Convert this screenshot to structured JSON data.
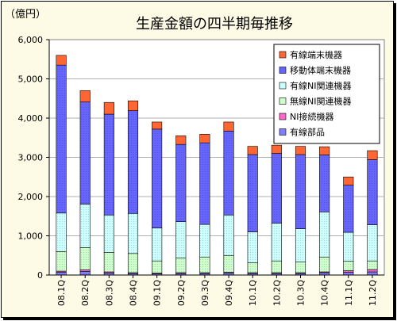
{
  "chart_data": {
    "type": "bar",
    "stacked": true,
    "title": "生産金額の四半期毎推移",
    "unit_label": "（億円）",
    "ylim": [
      0,
      6000
    ],
    "yticks": [
      0,
      1000,
      2000,
      3000,
      4000,
      5000,
      6000
    ],
    "ytick_labels": [
      "0",
      "1,000",
      "2,000",
      "3,000",
      "4,000",
      "5,000",
      "6,000"
    ],
    "categories": [
      "08.1Q",
      "08.2Q",
      "08.3Q",
      "08.4Q",
      "09.1Q",
      "09.2Q",
      "09.3Q",
      "09.4Q",
      "10.1Q",
      "10.2Q",
      "10.3Q",
      "10.4Q",
      "11.1Q",
      "11.2Q"
    ],
    "legend_position": "top-right",
    "grid": "horizontal",
    "series": [
      {
        "name": "有線部品",
        "color": "#8080ff",
        "pattern": "dots",
        "values": [
          70,
          90,
          50,
          40,
          30,
          40,
          40,
          50,
          40,
          40,
          40,
          60,
          70,
          80
        ]
      },
      {
        "name": "NI接続機器",
        "color": "#ff66cc",
        "pattern": "dots",
        "values": [
          30,
          40,
          30,
          20,
          20,
          20,
          20,
          20,
          20,
          20,
          20,
          20,
          40,
          60
        ]
      },
      {
        "name": "無線NI関連機器",
        "color": "#ccffcc",
        "pattern": "dots",
        "values": [
          500,
          570,
          500,
          490,
          310,
          370,
          400,
          430,
          250,
          300,
          270,
          380,
          240,
          220
        ]
      },
      {
        "name": "有線NI関連機器",
        "color": "#ccffff",
        "pattern": "dots",
        "values": [
          980,
          1110,
          950,
          1020,
          840,
          930,
          830,
          1030,
          790,
          960,
          850,
          1150,
          740,
          920
        ]
      },
      {
        "name": "移動体端末機器",
        "color": "#6666ff",
        "pattern": "dots",
        "values": [
          3770,
          2600,
          2570,
          2620,
          2520,
          1970,
          2080,
          2140,
          1970,
          1780,
          1890,
          1450,
          1200,
          1660
        ]
      },
      {
        "name": "有線端末機器",
        "color": "#ff6633",
        "pattern": "solid",
        "values": [
          250,
          290,
          300,
          250,
          180,
          220,
          220,
          230,
          210,
          210,
          210,
          210,
          210,
          230
        ]
      }
    ]
  }
}
